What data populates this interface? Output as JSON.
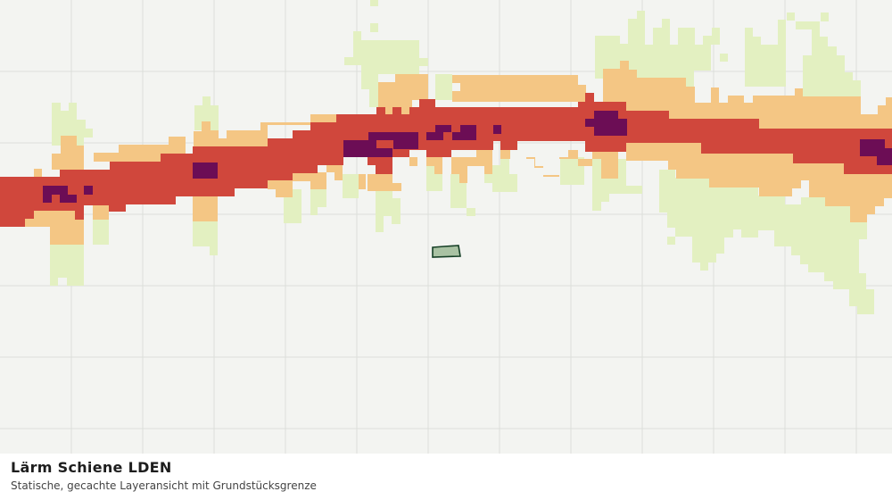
{
  "caption": {
    "title": "Lärm Schiene LDEN",
    "subtitle": "Statische, gecachte Layeransicht mit Grundstücksgrenze"
  }
}
